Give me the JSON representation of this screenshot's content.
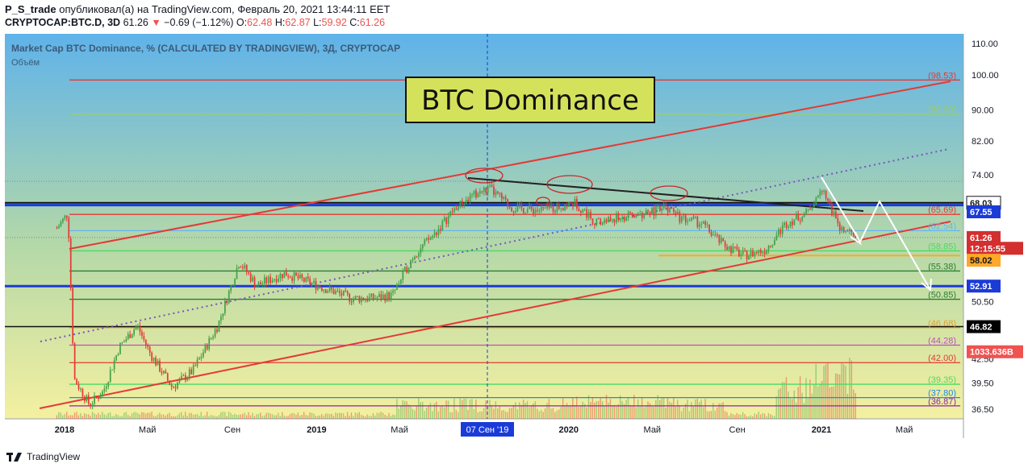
{
  "header": {
    "author": "P_S_trade",
    "published_text": "опубликовал(а) на TradingView.com, Февраль 20, 2021 13:44:11 EET",
    "symbol_line": "CRYPTOCAP:BTC.D, 3D",
    "last": "61.26",
    "change_arrow": "▼",
    "change": "−0.69 (−1.12%)",
    "o_label": "O:",
    "o": "62.48",
    "h_label": "H:",
    "h": "62.87",
    "l_label": "L:",
    "l": "59.92",
    "c_label": "C:",
    "c": "61.26"
  },
  "footer": {
    "brand": "TradingView"
  },
  "colors": {
    "bg_top": "#5fb3ea",
    "bg_bottom": "#f4f0a0",
    "up_candle": "#43a047",
    "down_candle": "#e53935",
    "channel": "#e53935",
    "title_box": "#d4e25b",
    "blue_level": "#1a3bd8"
  },
  "chart_data": {
    "type": "candlestick",
    "title": "Market Cap BTC Dominance, % (CALCULATED BY TRADINGVIEW), 3Д, CRYPTOCAP",
    "subtitle": "Объём",
    "annotation_box": "BTC Dominance",
    "x_ticks": [
      "2018",
      "Май",
      "Сен",
      "2019",
      "Май",
      "Сен",
      "2020",
      "Май",
      "Сен",
      "2021",
      "Май"
    ],
    "crosshair_label": "07 Сен '19",
    "y_ticks": [
      "110.00",
      "100.00",
      "90.00",
      "82.00",
      "74.00",
      "67.55",
      "58.02",
      "50.50",
      "42.50",
      "39.50",
      "36.50"
    ],
    "y_scale": "log",
    "ylim": [
      35.5,
      112
    ],
    "price_path": [
      [
        "2017-12",
        63
      ],
      [
        "2018-01-05",
        66
      ],
      [
        "2018-01-14",
        40
      ],
      [
        "2018-02-05",
        37
      ],
      [
        "2018-02-25",
        38.5
      ],
      [
        "2018-03-20",
        44
      ],
      [
        "2018-04-15",
        47
      ],
      [
        "2018-05-05",
        43
      ],
      [
        "2018-06-05",
        39
      ],
      [
        "2018-07-05",
        41
      ],
      [
        "2018-08-10",
        47
      ],
      [
        "2018-09-10",
        57
      ],
      [
        "2018-10-05",
        53
      ],
      [
        "2018-11-15",
        55
      ],
      [
        "2019-01-01",
        53
      ],
      [
        "2019-02-20",
        51
      ],
      [
        "2019-03-20",
        51
      ],
      [
        "2019-04-20",
        51.5
      ],
      [
        "2019-05-20",
        58
      ],
      [
        "2019-06-20",
        62
      ],
      [
        "2019-07-20",
        67
      ],
      [
        "2019-08-20",
        70
      ],
      [
        "2019-09-07",
        71
      ],
      [
        "2019-10-10",
        67
      ],
      [
        "2019-11-20",
        66.5
      ],
      [
        "2020-01-10",
        68
      ],
      [
        "2020-02-10",
        64
      ],
      [
        "2020-03-10",
        65
      ],
      [
        "2020-04-10",
        65.5
      ],
      [
        "2020-05-20",
        67
      ],
      [
        "2020-06-10",
        65
      ],
      [
        "2020-07-10",
        64
      ],
      [
        "2020-08-10",
        60
      ],
      [
        "2020-09-10",
        58
      ],
      [
        "2020-10-10",
        59
      ],
      [
        "2020-11-10",
        64
      ],
      [
        "2020-12-10",
        66
      ],
      [
        "2021-01-01",
        71.5
      ],
      [
        "2021-01-25",
        63
      ],
      [
        "2021-02-20",
        61.26
      ]
    ],
    "right_tags": [
      {
        "value": "68.03",
        "bg": "#ffffff",
        "fg": "#131722",
        "border": "#131722"
      },
      {
        "value": "67.55",
        "bg": "#1a3bd8",
        "fg": "#ffffff"
      },
      {
        "value": "61.26",
        "bg": "#d32f2f",
        "fg": "#ffffff"
      },
      {
        "value": "12:15:55",
        "bg": "#d32f2f",
        "fg": "#ffffff"
      },
      {
        "value": "58.02",
        "bg": "#ffa726",
        "fg": "#131722"
      },
      {
        "value": "52.91",
        "bg": "#1a3bd8",
        "fg": "#ffffff"
      },
      {
        "value": "46.82",
        "bg": "#000000",
        "fg": "#ffffff"
      },
      {
        "value": "1033.636B",
        "bg": "#ef5350",
        "fg": "#ffffff"
      }
    ],
    "fib_levels": [
      {
        "label": "(98.53)",
        "value": 98.53,
        "color": "#e53935"
      },
      {
        "label": "(88.90)",
        "value": 88.9,
        "color": "#9ccc65"
      },
      {
        "label": "(65.69)",
        "value": 65.69,
        "color": "#e53935"
      },
      {
        "label": "(62.54)",
        "value": 62.54,
        "color": "#64b5f6"
      },
      {
        "label": "(58.85)",
        "value": 58.85,
        "color": "#4cd964"
      },
      {
        "label": "(55.38)",
        "value": 55.38,
        "color": "#2e7d32"
      },
      {
        "label": "(50.85)",
        "value": 50.85,
        "color": "#2e7d32"
      },
      {
        "label": "(46.68)",
        "value": 46.68,
        "color": "#e0a030"
      },
      {
        "label": "(44.28)",
        "value": 44.28,
        "color": "#c050c0"
      },
      {
        "label": "(42.00)",
        "value": 42.0,
        "color": "#e53935"
      },
      {
        "label": "(39.35)",
        "value": 39.35,
        "color": "#4cd964"
      },
      {
        "label": "(37.80)",
        "value": 37.8,
        "color": "#1e88e5"
      },
      {
        "label": "(36.87)",
        "value": 36.87,
        "color": "#8e24aa"
      }
    ]
  }
}
